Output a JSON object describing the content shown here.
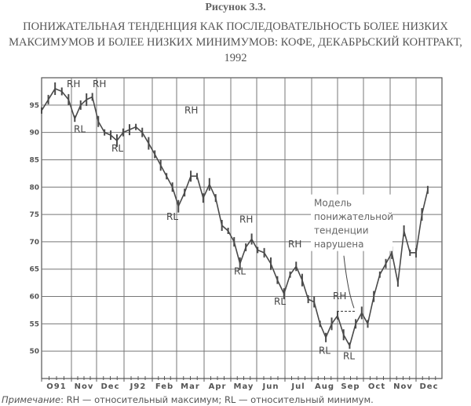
{
  "figure_number": "Рисунок 3.3.",
  "chart_data": {
    "type": "line",
    "title": "ПОНИЖАТЕЛЬНАЯ ТЕНДЕНЦИЯ КАК ПОСЛЕДОВАТЕЛЬНОСТЬ БОЛЕЕ НИЗКИХ МАКСИМУМОВ И БОЛЕЕ НИЗКИХ МИНИМУМОВ: КОФЕ, ДЕКАБРЬСКИЙ КОНТРАКТ, 1992",
    "xlabel": "",
    "ylabel": "",
    "ylim": [
      45,
      100
    ],
    "y_ticks": [
      95,
      90,
      85,
      80,
      75,
      70,
      65,
      60,
      55,
      50
    ],
    "x_tick_labels": [
      "O91",
      "Nov",
      "Dec",
      "J92",
      "Feb",
      "Mar",
      "Apr",
      "May",
      "Jun",
      "Jul",
      "Aug",
      "Sep",
      "Oct",
      "Nov",
      "Dec"
    ],
    "grid": true,
    "line_color": "#4a4a4a",
    "series": [
      {
        "x": [
          "1991-10-01",
          "1991-10-08",
          "1991-10-15",
          "1991-10-22",
          "1991-10-29",
          "1991-11-05",
          "1991-11-12",
          "1991-11-19",
          "1991-11-26",
          "1991-12-03",
          "1991-12-10",
          "1991-12-17",
          "1991-12-24",
          "1991-12-31",
          "1992-01-07",
          "1992-01-14",
          "1992-01-21",
          "1992-01-28",
          "1992-02-04",
          "1992-02-11",
          "1992-02-18",
          "1992-02-25",
          "1992-03-03",
          "1992-03-10",
          "1992-03-17",
          "1992-03-24",
          "1992-03-31",
          "1992-04-07",
          "1992-04-14",
          "1992-04-21",
          "1992-04-28",
          "1992-05-05",
          "1992-05-12",
          "1992-05-19",
          "1992-05-26",
          "1992-06-02",
          "1992-06-09",
          "1992-06-16",
          "1992-06-23",
          "1992-06-30",
          "1992-07-07",
          "1992-07-14",
          "1992-07-21",
          "1992-07-28",
          "1992-08-04",
          "1992-08-11",
          "1992-08-18",
          "1992-08-25",
          "1992-09-01",
          "1992-09-08",
          "1992-09-15",
          "1992-09-22",
          "1992-09-29",
          "1992-10-06",
          "1992-10-13",
          "1992-10-20",
          "1992-10-27",
          "1992-11-03",
          "1992-11-10",
          "1992-11-17",
          "1992-11-24",
          "1992-12-01",
          "1992-12-08",
          "1992-12-15"
        ],
        "y": [
          94,
          96,
          98,
          97.5,
          96,
          92.5,
          95,
          96,
          96.5,
          92,
          90,
          89.5,
          88.5,
          90,
          90.5,
          91,
          90,
          88,
          86,
          84,
          82,
          80,
          76.5,
          79,
          82,
          82,
          78,
          80.5,
          78,
          73,
          72,
          70,
          66,
          69,
          70.5,
          68.5,
          68,
          66,
          63,
          60.5,
          64,
          65.5,
          63,
          59.5,
          59,
          55,
          52.5,
          55,
          56.5,
          53,
          51,
          55,
          57,
          55,
          60,
          64,
          66,
          68,
          62.5,
          72,
          68,
          68,
          75,
          79.5
        ]
      }
    ],
    "annotations": {
      "relative_highs": [
        "RH",
        "RH",
        "RH",
        "RH",
        "RH",
        "RH"
      ],
      "relative_lows": [
        "RL",
        "RL",
        "RL",
        "RL",
        "RL",
        "RL",
        "RL"
      ],
      "breakout_level": 57.3,
      "callout": [
        "Модель",
        "понижательной",
        "тенденции",
        "нарушена"
      ]
    }
  },
  "note": {
    "label": "Примечание",
    "text": ": RH — относительный максимум; RL — относительный минимум."
  }
}
